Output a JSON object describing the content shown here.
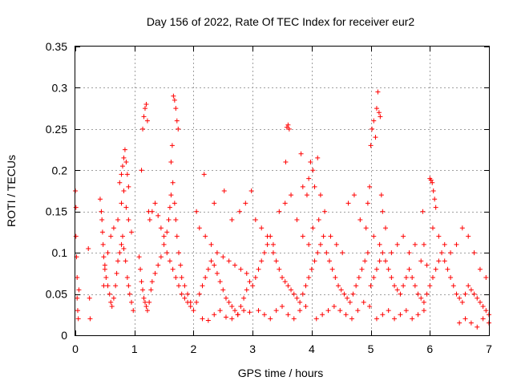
{
  "chart_data": {
    "type": "scatter",
    "title": "Day 156 of 2022, Rate Of TEC Index for receiver eur2",
    "xlabel": "GPS time / hours",
    "ylabel": "ROTI / TECUs",
    "xlim": [
      0,
      7
    ],
    "ylim": [
      0,
      0.35
    ],
    "xticks": [
      0,
      1,
      2,
      3,
      4,
      5,
      6,
      7
    ],
    "xtick_labels": [
      "0",
      "1",
      "2",
      "3",
      "4",
      "5",
      "6",
      "7"
    ],
    "yticks": [
      0,
      0.05,
      0.1,
      0.15,
      0.2,
      0.25,
      0.3,
      0.35
    ],
    "ytick_labels": [
      "0",
      "0.05",
      "0.1",
      "0.15",
      "0.2",
      "0.25",
      "0.3",
      "0.35"
    ],
    "grid": true,
    "marker": "plus",
    "color": "#ff0000",
    "series": [
      {
        "x": [
          0.0,
          0.01,
          0.01,
          0.02,
          0.03,
          0.03,
          0.04,
          0.05,
          0.06,
          0.22,
          0.24,
          0.25,
          0.42,
          0.44,
          0.45,
          0.46,
          0.47,
          0.48,
          0.5,
          0.52,
          0.55,
          0.58,
          0.6,
          0.62,
          0.65,
          0.68,
          0.7,
          0.72,
          0.75,
          0.78,
          0.8,
          0.82,
          0.85,
          0.88,
          0.9,
          0.92,
          0.95,
          0.98,
          0.48,
          0.5,
          0.55,
          0.6,
          0.65,
          0.72,
          0.78,
          0.82,
          0.86,
          0.9,
          0.95,
          0.75,
          0.78,
          0.8,
          0.82,
          0.84,
          0.86,
          0.88,
          0.9,
          1.08,
          1.1,
          1.12,
          1.14,
          1.16,
          1.18,
          1.2,
          1.22,
          1.25,
          1.28,
          1.3,
          1.35,
          1.4,
          1.45,
          1.5,
          1.55,
          1.58,
          1.6,
          1.62,
          1.65,
          1.68,
          1.7,
          1.72,
          1.75,
          1.78,
          1.8,
          1.85,
          1.9,
          1.95,
          1.12,
          1.14,
          1.16,
          1.18,
          1.2,
          1.22,
          1.24,
          1.26,
          1.62,
          1.64,
          1.66,
          1.68,
          1.7,
          1.72,
          1.74,
          1.3,
          1.35,
          1.4,
          1.45,
          1.5,
          1.55,
          1.6,
          1.65,
          1.7,
          1.75,
          1.8,
          1.85,
          1.9,
          1.95,
          2.0,
          2.05,
          2.1,
          2.15,
          2.2,
          2.25,
          2.3,
          2.35,
          2.4,
          2.45,
          2.5,
          2.55,
          2.6,
          2.65,
          2.7,
          2.75,
          2.8,
          2.85,
          2.9,
          2.95,
          2.1,
          2.2,
          2.3,
          2.4,
          2.5,
          2.6,
          2.7,
          2.8,
          2.9,
          2.15,
          2.25,
          2.35,
          2.45,
          2.55,
          2.65,
          2.75,
          2.85,
          2.95,
          2.05,
          2.18,
          2.35,
          2.52,
          2.65,
          2.78,
          2.88,
          2.98,
          3.0,
          3.05,
          3.1,
          3.15,
          3.2,
          3.25,
          3.3,
          3.35,
          3.4,
          3.45,
          3.5,
          3.55,
          3.6,
          3.65,
          3.7,
          3.75,
          3.8,
          3.85,
          3.9,
          3.95,
          3.05,
          3.15,
          3.25,
          3.35,
          3.45,
          3.55,
          3.65,
          3.75,
          3.85,
          3.95,
          3.1,
          3.2,
          3.3,
          3.4,
          3.5,
          3.6,
          3.7,
          3.8,
          3.9,
          3.58,
          3.6,
          3.62,
          3.56,
          3.82,
          3.85,
          3.92,
          3.95,
          3.98,
          4.02,
          4.05,
          4.1,
          4.15,
          4.0,
          4.05,
          4.1,
          4.15,
          4.2,
          4.25,
          4.3,
          4.35,
          4.4,
          4.45,
          4.5,
          4.55,
          4.6,
          4.65,
          4.7,
          4.75,
          4.8,
          4.85,
          4.9,
          4.95,
          4.02,
          4.12,
          4.22,
          4.32,
          4.42,
          4.52,
          4.62,
          4.72,
          4.82,
          4.92,
          4.08,
          4.18,
          4.28,
          4.38,
          4.48,
          4.58,
          4.68,
          4.78,
          4.88,
          4.98,
          4.95,
          4.98,
          5.0,
          5.02,
          5.05,
          5.08,
          5.1,
          5.12,
          5.14,
          5.16,
          5.18,
          5.2,
          5.0,
          5.05,
          5.1,
          5.15,
          5.2,
          5.25,
          5.3,
          5.35,
          5.4,
          5.45,
          5.5,
          5.55,
          5.6,
          5.65,
          5.7,
          5.75,
          5.8,
          5.85,
          5.9,
          5.95,
          5.05,
          5.15,
          5.25,
          5.35,
          5.45,
          5.55,
          5.65,
          5.75,
          5.85,
          5.95,
          5.1,
          5.2,
          5.3,
          5.4,
          5.5,
          5.6,
          5.7,
          5.8,
          5.9,
          6.0,
          6.02,
          6.04,
          6.06,
          6.08,
          6.1,
          5.88,
          5.9,
          6.0,
          6.05,
          6.1,
          6.15,
          6.2,
          6.25,
          6.3,
          6.35,
          6.4,
          6.45,
          6.5,
          6.55,
          6.6,
          6.65,
          6.7,
          6.75,
          6.8,
          6.85,
          6.9,
          6.95,
          7.0,
          6.05,
          6.15,
          6.25,
          6.35,
          6.45,
          6.55,
          6.65,
          6.75,
          6.85,
          6.95,
          6.5,
          6.6,
          6.7,
          6.8,
          6.9,
          7.0
        ],
        "y": [
          0.175,
          0.155,
          0.12,
          0.095,
          0.07,
          0.045,
          0.03,
          0.02,
          0.055,
          0.105,
          0.045,
          0.02,
          0.165,
          0.15,
          0.14,
          0.125,
          0.11,
          0.095,
          0.085,
          0.07,
          0.06,
          0.05,
          0.04,
          0.035,
          0.045,
          0.06,
          0.075,
          0.09,
          0.1,
          0.11,
          0.12,
          0.105,
          0.09,
          0.07,
          0.06,
          0.05,
          0.04,
          0.03,
          0.06,
          0.08,
          0.1,
          0.12,
          0.13,
          0.14,
          0.16,
          0.175,
          0.155,
          0.14,
          0.125,
          0.185,
          0.195,
          0.205,
          0.215,
          0.225,
          0.21,
          0.195,
          0.18,
          0.095,
          0.08,
          0.065,
          0.055,
          0.045,
          0.04,
          0.035,
          0.03,
          0.04,
          0.055,
          0.065,
          0.075,
          0.085,
          0.095,
          0.11,
          0.125,
          0.14,
          0.155,
          0.17,
          0.185,
          0.16,
          0.14,
          0.12,
          0.1,
          0.085,
          0.07,
          0.06,
          0.05,
          0.04,
          0.2,
          0.25,
          0.265,
          0.275,
          0.28,
          0.26,
          0.15,
          0.14,
          0.21,
          0.23,
          0.29,
          0.285,
          0.275,
          0.26,
          0.25,
          0.15,
          0.16,
          0.145,
          0.13,
          0.12,
          0.1,
          0.09,
          0.08,
          0.07,
          0.06,
          0.05,
          0.045,
          0.04,
          0.035,
          0.03,
          0.04,
          0.05,
          0.06,
          0.07,
          0.08,
          0.09,
          0.085,
          0.075,
          0.065,
          0.055,
          0.045,
          0.04,
          0.035,
          0.03,
          0.025,
          0.035,
          0.045,
          0.055,
          0.065,
          0.13,
          0.12,
          0.11,
          0.1,
          0.095,
          0.09,
          0.085,
          0.08,
          0.075,
          0.02,
          0.018,
          0.025,
          0.03,
          0.022,
          0.02,
          0.025,
          0.03,
          0.028,
          0.15,
          0.195,
          0.16,
          0.175,
          0.14,
          0.15,
          0.16,
          0.175,
          0.06,
          0.07,
          0.08,
          0.09,
          0.1,
          0.11,
          0.12,
          0.1,
          0.09,
          0.08,
          0.07,
          0.065,
          0.06,
          0.055,
          0.05,
          0.045,
          0.04,
          0.05,
          0.06,
          0.07,
          0.14,
          0.13,
          0.12,
          0.11,
          0.15,
          0.16,
          0.17,
          0.14,
          0.12,
          0.11,
          0.03,
          0.025,
          0.02,
          0.03,
          0.035,
          0.025,
          0.02,
          0.03,
          0.035,
          0.252,
          0.255,
          0.25,
          0.21,
          0.22,
          0.18,
          0.17,
          0.19,
          0.21,
          0.2,
          0.18,
          0.215,
          0.17,
          0.08,
          0.09,
          0.1,
          0.11,
          0.12,
          0.1,
          0.09,
          0.08,
          0.07,
          0.06,
          0.055,
          0.05,
          0.045,
          0.04,
          0.05,
          0.06,
          0.07,
          0.08,
          0.09,
          0.1,
          0.13,
          0.14,
          0.15,
          0.12,
          0.11,
          0.1,
          0.16,
          0.17,
          0.14,
          0.13,
          0.02,
          0.025,
          0.03,
          0.035,
          0.03,
          0.025,
          0.02,
          0.03,
          0.04,
          0.035,
          0.16,
          0.18,
          0.23,
          0.25,
          0.26,
          0.24,
          0.275,
          0.295,
          0.27,
          0.265,
          0.17,
          0.15,
          0.06,
          0.07,
          0.08,
          0.09,
          0.1,
          0.09,
          0.08,
          0.07,
          0.06,
          0.055,
          0.05,
          0.06,
          0.07,
          0.08,
          0.07,
          0.06,
          0.05,
          0.045,
          0.04,
          0.05,
          0.12,
          0.11,
          0.13,
          0.1,
          0.11,
          0.12,
          0.1,
          0.11,
          0.09,
          0.085,
          0.02,
          0.025,
          0.03,
          0.02,
          0.025,
          0.03,
          0.02,
          0.025,
          0.03,
          0.19,
          0.188,
          0.185,
          0.175,
          0.165,
          0.155,
          0.15,
          0.11,
          0.06,
          0.07,
          0.08,
          0.09,
          0.1,
          0.09,
          0.08,
          0.07,
          0.06,
          0.05,
          0.045,
          0.04,
          0.05,
          0.06,
          0.055,
          0.05,
          0.045,
          0.04,
          0.035,
          0.03,
          0.025,
          0.13,
          0.12,
          0.11,
          0.1,
          0.11,
          0.13,
          0.12,
          0.1,
          0.08,
          0.07,
          0.015,
          0.02,
          0.015,
          0.01,
          0.02,
          0.015
        ]
      }
    ]
  }
}
